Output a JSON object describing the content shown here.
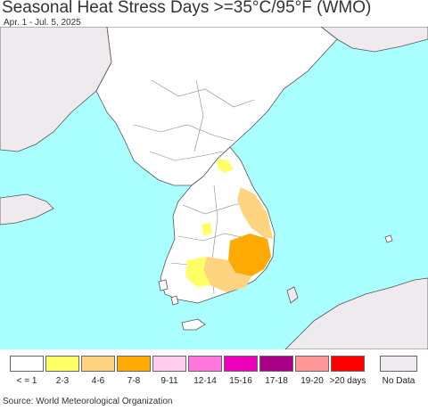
{
  "header": {
    "title": "Seasonal Heat Stress Days >=35°C/95°F (WMO)",
    "subtitle": "Apr. 1 - Jul. 5, 2025"
  },
  "map": {
    "colors": {
      "sea": "#aaffff",
      "land": "#ffffff",
      "no_data_land": "#eeeaee",
      "border": "#555555"
    },
    "highlighted_bins": [
      "2-3",
      "4-6",
      "7-8"
    ]
  },
  "legend": {
    "items": [
      {
        "label": "< = 1",
        "color": "#ffffff"
      },
      {
        "label": "2-3",
        "color": "#ffff66"
      },
      {
        "label": "4-6",
        "color": "#fed480"
      },
      {
        "label": "7-8",
        "color": "#ffaa00"
      },
      {
        "label": "9-11",
        "color": "#ffccee"
      },
      {
        "label": "12-14",
        "color": "#ff77dd"
      },
      {
        "label": "15-16",
        "color": "#ee00bb"
      },
      {
        "label": "17-18",
        "color": "#aa0088"
      },
      {
        "label": "19-20",
        "color": "#ff9999"
      },
      {
        "label": ">20 days",
        "color": "#ff0000"
      }
    ],
    "no_data": {
      "label": "No Data",
      "color": "#eeeaee"
    }
  },
  "footer": {
    "source": "Source: World Meteorological Organization"
  }
}
